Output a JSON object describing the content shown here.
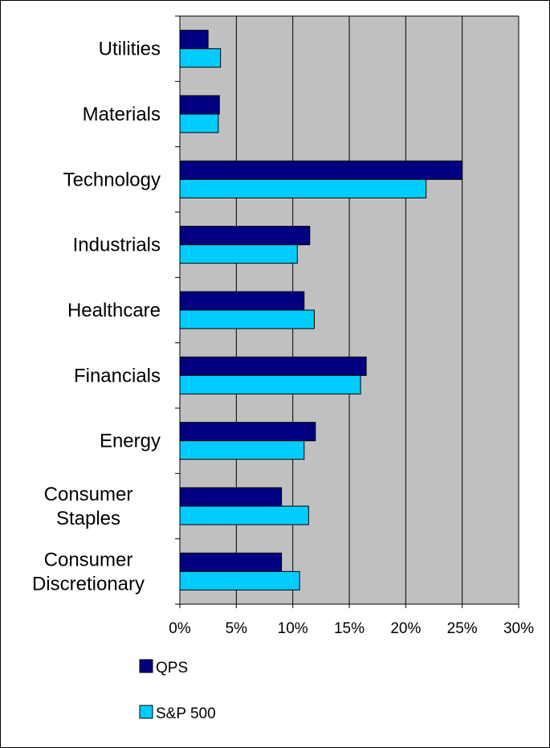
{
  "chart_data": {
    "type": "bar",
    "orientation": "horizontal",
    "title": "",
    "xlabel": "",
    "ylabel": "",
    "categories": [
      [
        "Utilities"
      ],
      [
        "Materials"
      ],
      [
        "Technology"
      ],
      [
        "Industrials"
      ],
      [
        "Healthcare"
      ],
      [
        "Financials"
      ],
      [
        "Energy"
      ],
      [
        "Consumer",
        "Staples"
      ],
      [
        "Consumer",
        "Discretionary"
      ]
    ],
    "series": [
      {
        "name": "QPS",
        "color": "#000080",
        "values": [
          2.5,
          3.5,
          25.0,
          11.5,
          11.0,
          16.5,
          12.0,
          9.0,
          9.0
        ]
      },
      {
        "name": "S&P 500",
        "color": "#00CCFF",
        "values": [
          3.6,
          3.4,
          21.8,
          10.4,
          11.9,
          16.0,
          11.0,
          11.4,
          10.6
        ]
      }
    ],
    "xlim": [
      0,
      30
    ],
    "xticks": [
      0,
      5,
      10,
      15,
      20,
      25,
      30
    ],
    "tick_format": "{v}%",
    "grid": "vertical",
    "plot_background": "#C0C0C0",
    "legend_position": "bottom-left"
  }
}
